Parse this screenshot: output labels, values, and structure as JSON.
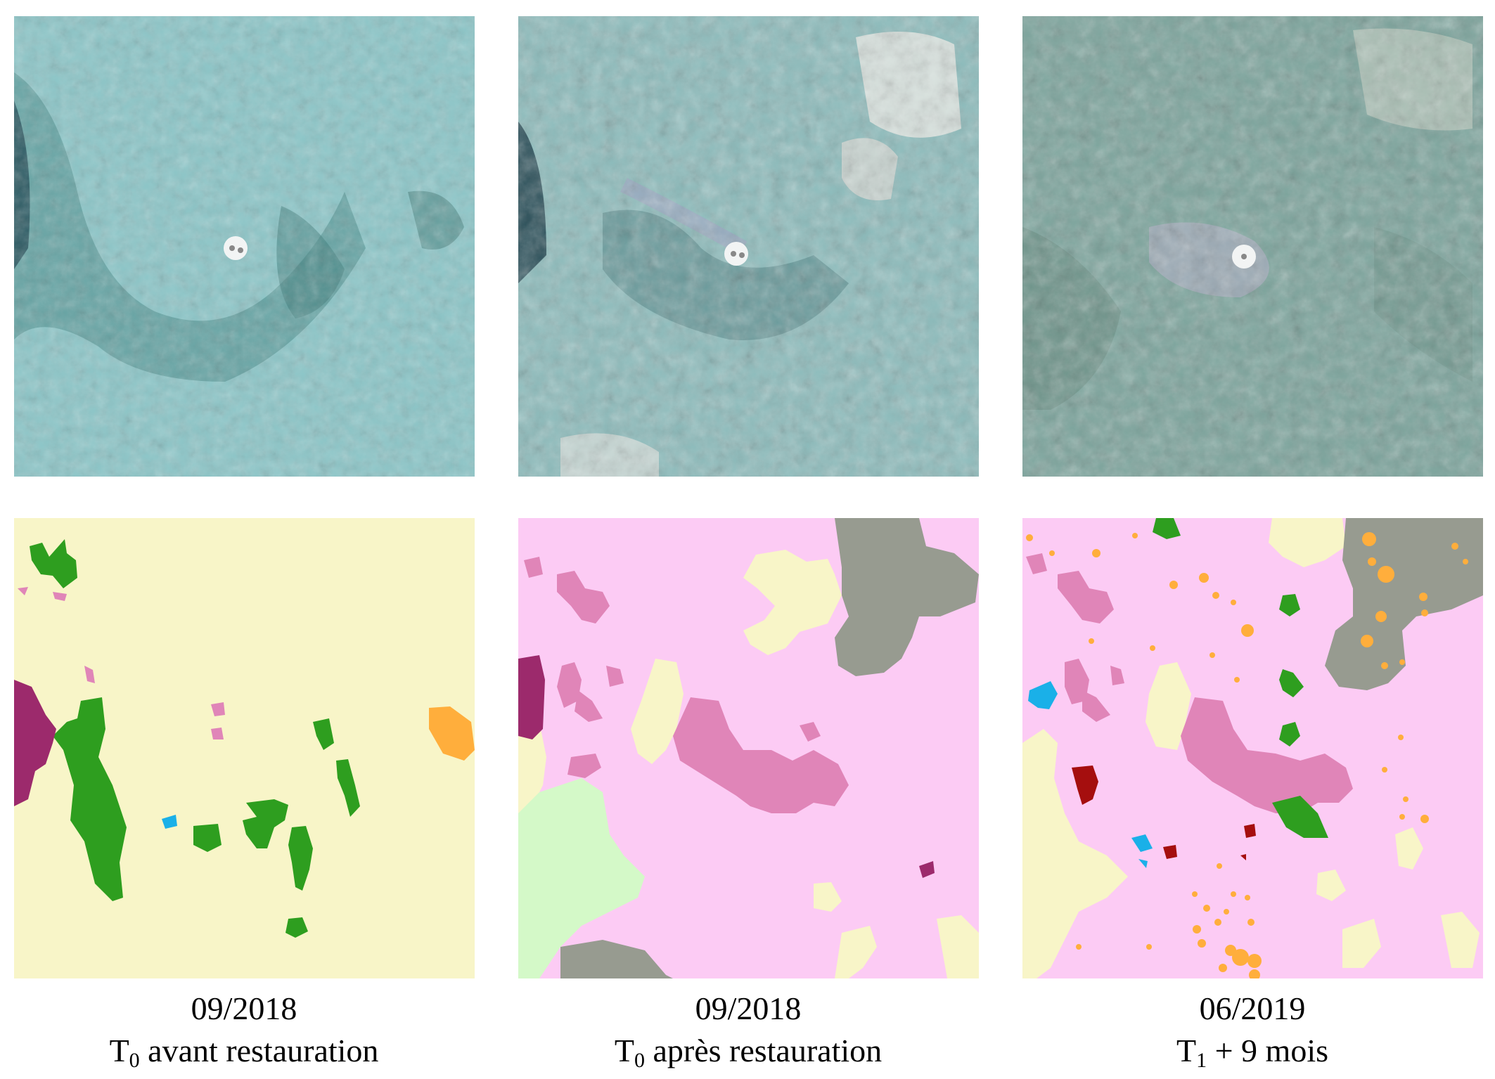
{
  "figure": {
    "columns": [
      {
        "date": "09/2018",
        "label_prefix": "T",
        "label_sub": "0",
        "label_rest": " avant restauration"
      },
      {
        "date": "09/2018",
        "label_prefix": "T",
        "label_sub": "0",
        "label_rest": " après restauration"
      },
      {
        "date": "06/2019",
        "label_prefix": "T",
        "label_sub": "1",
        "label_rest": " + 9 mois"
      }
    ]
  },
  "colors": {
    "sand_bg": "#f8f5c8",
    "pink_bg": "#fccbf4",
    "green": "#2e9e1f",
    "dark_pink": "#e085b8",
    "magenta": "#9c2a6c",
    "cyan": "#1ab0e8",
    "orange": "#ffae3c",
    "gray": "#979b90",
    "light_green": "#d4f9c8",
    "dark_red": "#a50e0e",
    "seafloor": "#7fb9bd"
  }
}
